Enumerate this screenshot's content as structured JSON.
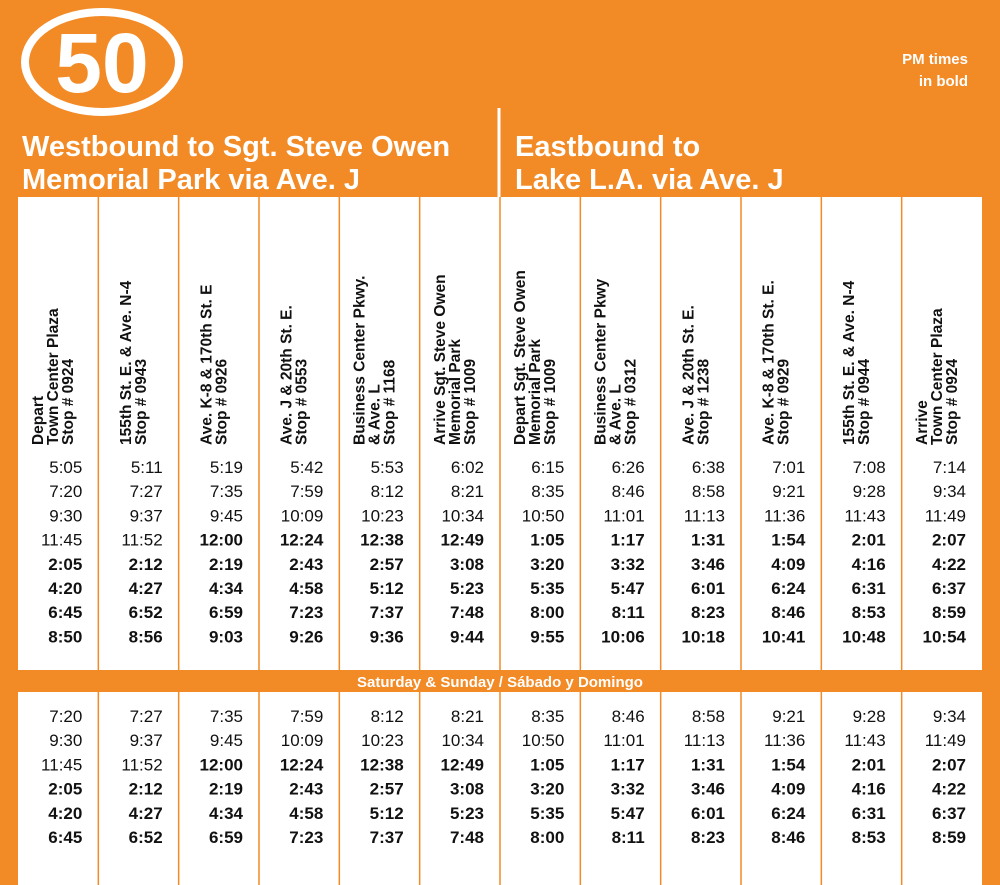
{
  "header": {
    "route": "50",
    "note": [
      "PM times",
      "in bold"
    ],
    "directions": [
      [
        "Westbound to Sgt. Steve Owen",
        "Memorial Park via Ave. J"
      ],
      [
        "Eastbound to",
        "Lake L.A. via Ave. J"
      ]
    ]
  },
  "table": {
    "columns": [
      [
        "Depart",
        "Town Center Plaza",
        "Stop # 0924"
      ],
      [
        "155th St. E. & Ave. N-4",
        "Stop # 0943"
      ],
      [
        "Ave. K-8 & 170th St. E",
        "Stop # 0926"
      ],
      [
        "Ave. J & 20th St. E.",
        "Stop # 0553"
      ],
      [
        "Business Center Pkwy.",
        "& Ave. L",
        "Stop # 1168"
      ],
      [
        "Arrive Sgt. Steve Owen",
        "Memorial Park",
        "Stop # 1009"
      ],
      [
        "Depart Sgt. Steve Owen",
        "Memorial Park",
        "Stop # 1009"
      ],
      [
        "Business Center Pkwy",
        "& Ave. L",
        "Stop # 0312"
      ],
      [
        "Ave. J & 20th St. E.",
        "Stop # 1238"
      ],
      [
        "Ave. K-8 & 170th St. E.",
        "Stop # 0929"
      ],
      [
        "155th St. E. & Ave. N-4",
        "Stop # 0944"
      ],
      [
        "Arrive",
        "Town Center Plaza",
        "Stop # 0924"
      ]
    ],
    "weekday": [
      {
        "times": [
          "5:05",
          "5:11",
          "5:19",
          "5:42",
          "5:53",
          "6:02",
          "6:15",
          "6:26",
          "6:38",
          "7:01",
          "7:08",
          "7:14"
        ],
        "bold": [
          false,
          false,
          false,
          false,
          false,
          false,
          false,
          false,
          false,
          false,
          false,
          false
        ]
      },
      {
        "times": [
          "7:20",
          "7:27",
          "7:35",
          "7:59",
          "8:12",
          "8:21",
          "8:35",
          "8:46",
          "8:58",
          "9:21",
          "9:28",
          "9:34"
        ],
        "bold": [
          false,
          false,
          false,
          false,
          false,
          false,
          false,
          false,
          false,
          false,
          false,
          false
        ]
      },
      {
        "times": [
          "9:30",
          "9:37",
          "9:45",
          "10:09",
          "10:23",
          "10:34",
          "10:50",
          "11:01",
          "11:13",
          "11:36",
          "11:43",
          "11:49"
        ],
        "bold": [
          false,
          false,
          false,
          false,
          false,
          false,
          false,
          false,
          false,
          false,
          false,
          false
        ]
      },
      {
        "times": [
          "11:45",
          "11:52",
          "12:00",
          "12:24",
          "12:38",
          "12:49",
          "1:05",
          "1:17",
          "1:31",
          "1:54",
          "2:01",
          "2:07"
        ],
        "bold": [
          false,
          false,
          true,
          true,
          true,
          true,
          true,
          true,
          true,
          true,
          true,
          true
        ]
      },
      {
        "times": [
          "2:05",
          "2:12",
          "2:19",
          "2:43",
          "2:57",
          "3:08",
          "3:20",
          "3:32",
          "3:46",
          "4:09",
          "4:16",
          "4:22"
        ],
        "bold": [
          true,
          true,
          true,
          true,
          true,
          true,
          true,
          true,
          true,
          true,
          true,
          true
        ]
      },
      {
        "times": [
          "4:20",
          "4:27",
          "4:34",
          "4:58",
          "5:12",
          "5:23",
          "5:35",
          "5:47",
          "6:01",
          "6:24",
          "6:31",
          "6:37"
        ],
        "bold": [
          true,
          true,
          true,
          true,
          true,
          true,
          true,
          true,
          true,
          true,
          true,
          true
        ]
      },
      {
        "times": [
          "6:45",
          "6:52",
          "6:59",
          "7:23",
          "7:37",
          "7:48",
          "8:00",
          "8:11",
          "8:23",
          "8:46",
          "8:53",
          "8:59"
        ],
        "bold": [
          true,
          true,
          true,
          true,
          true,
          true,
          true,
          true,
          true,
          true,
          true,
          true
        ]
      },
      {
        "times": [
          "8:50",
          "8:56",
          "9:03",
          "9:26",
          "9:36",
          "9:44",
          "9:55",
          "10:06",
          "10:18",
          "10:41",
          "10:48",
          "10:54"
        ],
        "bold": [
          true,
          true,
          true,
          true,
          true,
          true,
          true,
          true,
          true,
          true,
          true,
          true
        ]
      }
    ],
    "weekend_label": "Saturday & Sunday / Sábado y Domingo",
    "weekend": [
      {
        "times": [
          "7:20",
          "7:27",
          "7:35",
          "7:59",
          "8:12",
          "8:21",
          "8:35",
          "8:46",
          "8:58",
          "9:21",
          "9:28",
          "9:34"
        ],
        "bold": [
          false,
          false,
          false,
          false,
          false,
          false,
          false,
          false,
          false,
          false,
          false,
          false
        ]
      },
      {
        "times": [
          "9:30",
          "9:37",
          "9:45",
          "10:09",
          "10:23",
          "10:34",
          "10:50",
          "11:01",
          "11:13",
          "11:36",
          "11:43",
          "11:49"
        ],
        "bold": [
          false,
          false,
          false,
          false,
          false,
          false,
          false,
          false,
          false,
          false,
          false,
          false
        ]
      },
      {
        "times": [
          "11:45",
          "11:52",
          "12:00",
          "12:24",
          "12:38",
          "12:49",
          "1:05",
          "1:17",
          "1:31",
          "1:54",
          "2:01",
          "2:07"
        ],
        "bold": [
          false,
          false,
          true,
          true,
          true,
          true,
          true,
          true,
          true,
          true,
          true,
          true
        ]
      },
      {
        "times": [
          "2:05",
          "2:12",
          "2:19",
          "2:43",
          "2:57",
          "3:08",
          "3:20",
          "3:32",
          "3:46",
          "4:09",
          "4:16",
          "4:22"
        ],
        "bold": [
          true,
          true,
          true,
          true,
          true,
          true,
          true,
          true,
          true,
          true,
          true,
          true
        ]
      },
      {
        "times": [
          "4:20",
          "4:27",
          "4:34",
          "4:58",
          "5:12",
          "5:23",
          "5:35",
          "5:47",
          "6:01",
          "6:24",
          "6:31",
          "6:37"
        ],
        "bold": [
          true,
          true,
          true,
          true,
          true,
          true,
          true,
          true,
          true,
          true,
          true,
          true
        ]
      },
      {
        "times": [
          "6:45",
          "6:52",
          "6:59",
          "7:23",
          "7:37",
          "7:48",
          "8:00",
          "8:11",
          "8:23",
          "8:46",
          "8:53",
          "8:59"
        ],
        "bold": [
          true,
          true,
          true,
          true,
          true,
          true,
          true,
          true,
          true,
          true,
          true,
          true
        ]
      }
    ]
  }
}
